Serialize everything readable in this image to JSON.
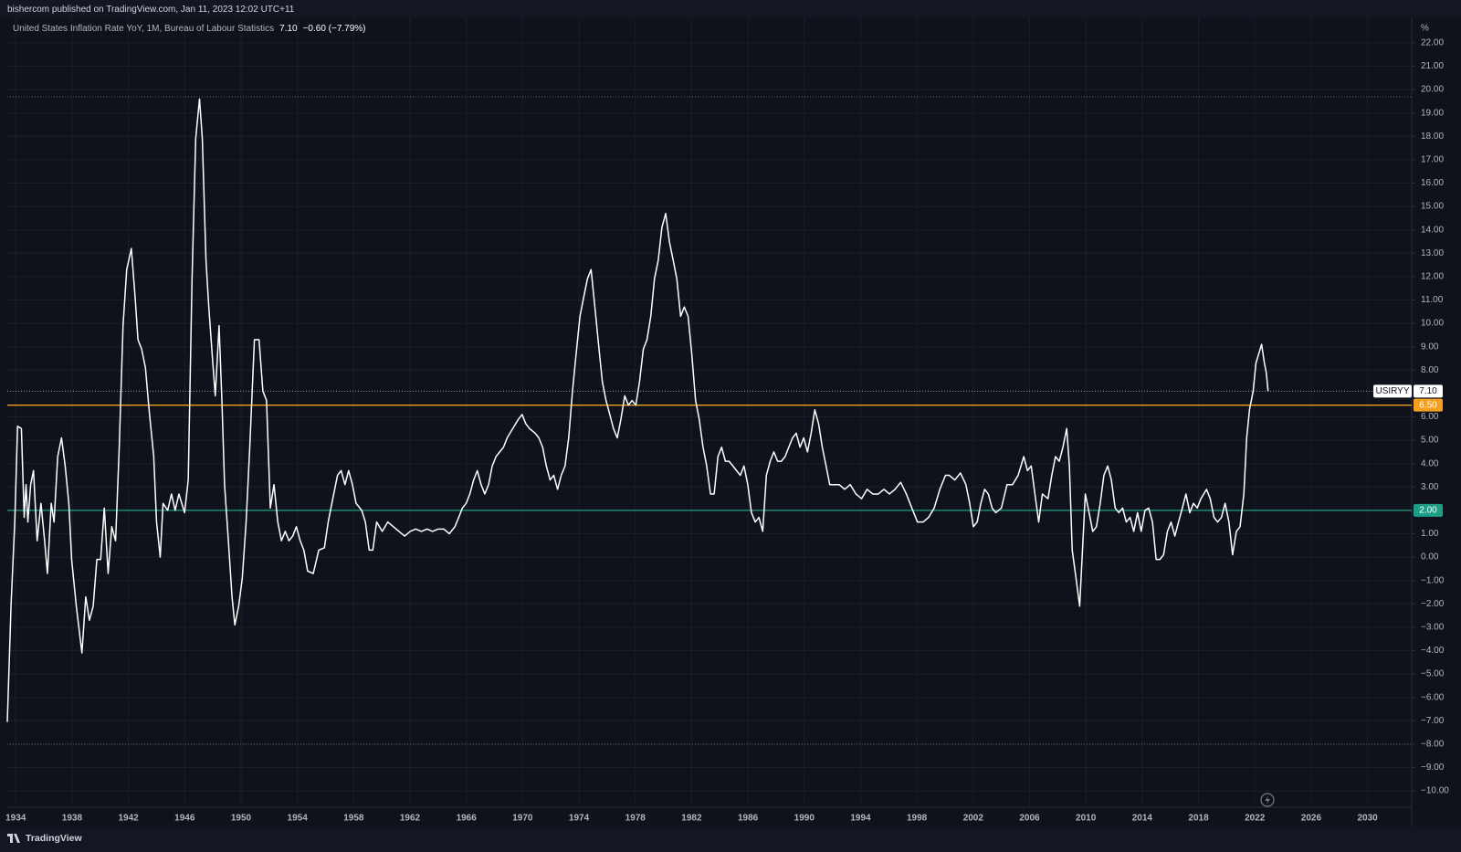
{
  "chart_data": {
    "type": "line",
    "publisher_note": "bishercom published on TradingView.com, Jan 11, 2023 12:02 UTC+11",
    "legend_title": "United States Inflation Rate YoY, 1M, Bureau of Labour Statistics",
    "legend_change": "−0.60 (−7.79%)",
    "unit": "%",
    "footer": "TradingView",
    "grid": true,
    "xlim": [
      1933.4,
      2033.14
    ],
    "ylim": [
      -10.7,
      23.05
    ],
    "xticks": [
      1934,
      1938,
      1942,
      1946,
      1950,
      1954,
      1958,
      1962,
      1966,
      1970,
      1974,
      1978,
      1982,
      1986,
      1990,
      1994,
      1998,
      2002,
      2006,
      2010,
      2014,
      2018,
      2022,
      2026,
      2030
    ],
    "yticks": [
      {
        "value": 22,
        "label": "22.00"
      },
      {
        "value": 21,
        "label": "21.00"
      },
      {
        "value": 20,
        "label": "20.00"
      },
      {
        "value": 19,
        "label": "19.00"
      },
      {
        "value": 18,
        "label": "18.00"
      },
      {
        "value": 17,
        "label": "17.00"
      },
      {
        "value": 16,
        "label": "16.00"
      },
      {
        "value": 15,
        "label": "15.00"
      },
      {
        "value": 14,
        "label": "14.00"
      },
      {
        "value": 13,
        "label": "13.00"
      },
      {
        "value": 12,
        "label": "12.00"
      },
      {
        "value": 11,
        "label": "11.00"
      },
      {
        "value": 10,
        "label": "10.00"
      },
      {
        "value": 9,
        "label": "9.00"
      },
      {
        "value": 8,
        "label": "8.00"
      },
      {
        "value": 6,
        "label": "6.00"
      },
      {
        "value": 5,
        "label": "5.00"
      },
      {
        "value": 4,
        "label": "4.00"
      },
      {
        "value": 3,
        "label": "3.00"
      },
      {
        "value": 1,
        "label": "1.00"
      },
      {
        "value": 0,
        "label": "0.00"
      },
      {
        "value": -1,
        "label": "−1.00"
      },
      {
        "value": -2,
        "label": "−2.00"
      },
      {
        "value": -3,
        "label": "−3.00"
      },
      {
        "value": -4,
        "label": "−4.00"
      },
      {
        "value": -5,
        "label": "−5.00"
      },
      {
        "value": -6,
        "label": "−6.00"
      },
      {
        "value": -7,
        "label": "−7.00"
      },
      {
        "value": -8,
        "label": "−8.00"
      },
      {
        "value": -9,
        "label": "−9.00"
      },
      {
        "value": -10,
        "label": "−10.00"
      }
    ],
    "last_value": {
      "value": 7.1,
      "label": "7.10"
    },
    "hlines": [
      {
        "value": 6.5,
        "label": "6.50",
        "color": "#f59f1f"
      },
      {
        "value": 2,
        "label": "2.00",
        "color": "#1f9e87"
      }
    ],
    "range_lines": [
      19.69,
      -8
    ],
    "x": [
      1933.4,
      1933.67,
      1933.93,
      1934.13,
      1934.4,
      1934.6,
      1934.73,
      1934.86,
      1935.06,
      1935.26,
      1935.52,
      1935.79,
      1936.05,
      1936.25,
      1936.52,
      1936.72,
      1936.98,
      1937.25,
      1937.51,
      1937.77,
      1937.97,
      1938.3,
      1938.7,
      1938.97,
      1939.23,
      1939.5,
      1939.76,
      1940.03,
      1940.29,
      1940.56,
      1940.82,
      1941.09,
      1941.35,
      1941.62,
      1941.88,
      1942.21,
      1942.48,
      1942.68,
      1942.94,
      1943.21,
      1943.47,
      1943.8,
      1944.0,
      1944.26,
      1944.46,
      1944.79,
      1945.06,
      1945.32,
      1945.59,
      1945.99,
      1946.25,
      1946.52,
      1946.78,
      1947.05,
      1947.25,
      1947.51,
      1947.71,
      1947.97,
      1948.17,
      1948.44,
      1948.64,
      1948.83,
      1949.1,
      1949.36,
      1949.56,
      1949.83,
      1950.09,
      1950.36,
      1950.62,
      1950.95,
      1951.28,
      1951.55,
      1951.81,
      1952.08,
      1952.34,
      1952.61,
      1952.87,
      1953.14,
      1953.4,
      1953.67,
      1953.93,
      1954.2,
      1954.46,
      1954.73,
      1955.13,
      1955.52,
      1955.92,
      1956.19,
      1956.45,
      1956.85,
      1957.11,
      1957.38,
      1957.64,
      1957.91,
      1958.17,
      1958.57,
      1958.83,
      1959.1,
      1959.36,
      1959.63,
      1960.03,
      1960.42,
      1960.82,
      1961.22,
      1961.62,
      1962.01,
      1962.41,
      1962.81,
      1963.21,
      1963.6,
      1964.0,
      1964.4,
      1964.79,
      1965.19,
      1965.46,
      1965.72,
      1965.99,
      1966.25,
      1966.52,
      1966.78,
      1967.05,
      1967.31,
      1967.58,
      1967.84,
      1968.11,
      1968.37,
      1968.64,
      1968.9,
      1969.3,
      1969.7,
      1969.96,
      1970.23,
      1970.49,
      1970.89,
      1971.15,
      1971.42,
      1971.68,
      1971.95,
      1972.21,
      1972.48,
      1972.74,
      1973.01,
      1973.27,
      1973.54,
      1973.8,
      1974.07,
      1974.33,
      1974.6,
      1974.86,
      1975.13,
      1975.39,
      1975.66,
      1975.92,
      1976.19,
      1976.45,
      1976.72,
      1976.98,
      1977.25,
      1977.51,
      1977.77,
      1978.04,
      1978.3,
      1978.57,
      1978.83,
      1979.1,
      1979.36,
      1979.63,
      1979.89,
      1980.16,
      1980.42,
      1980.69,
      1980.95,
      1981.22,
      1981.48,
      1981.75,
      1982.01,
      1982.28,
      1982.54,
      1982.81,
      1983.07,
      1983.34,
      1983.6,
      1983.87,
      1984.13,
      1984.4,
      1984.66,
      1984.93,
      1985.19,
      1985.46,
      1985.72,
      1985.99,
      1986.25,
      1986.52,
      1986.78,
      1987.05,
      1987.31,
      1987.58,
      1987.84,
      1988.11,
      1988.37,
      1988.64,
      1988.9,
      1989.17,
      1989.43,
      1989.7,
      1989.96,
      1990.23,
      1990.49,
      1990.75,
      1991.02,
      1991.28,
      1991.55,
      1991.81,
      1992.08,
      1992.48,
      1992.87,
      1993.27,
      1993.67,
      1994.07,
      1994.46,
      1994.86,
      1995.26,
      1995.66,
      1996.05,
      1996.45,
      1996.85,
      1997.25,
      1997.64,
      1998.04,
      1998.44,
      1998.83,
      1999.23,
      1999.63,
      2000.03,
      2000.29,
      2000.69,
      2001.09,
      2001.48,
      2001.75,
      2002.01,
      2002.28,
      2002.54,
      2002.81,
      2003.07,
      2003.34,
      2003.6,
      2004.0,
      2004.4,
      2004.79,
      2005.19,
      2005.59,
      2005.85,
      2006.12,
      2006.38,
      2006.65,
      2006.91,
      2007.31,
      2007.58,
      2007.84,
      2008.11,
      2008.37,
      2008.64,
      2008.83,
      2009.03,
      2009.3,
      2009.56,
      2009.76,
      2009.96,
      2010.23,
      2010.49,
      2010.75,
      2011.02,
      2011.28,
      2011.55,
      2011.81,
      2012.08,
      2012.34,
      2012.61,
      2012.87,
      2013.14,
      2013.4,
      2013.67,
      2013.93,
      2014.2,
      2014.46,
      2014.73,
      2014.99,
      2015.26,
      2015.52,
      2015.79,
      2016.05,
      2016.32,
      2016.58,
      2016.85,
      2017.11,
      2017.38,
      2017.64,
      2017.91,
      2018.17,
      2018.57,
      2018.83,
      2019.1,
      2019.36,
      2019.63,
      2019.89,
      2020.16,
      2020.42,
      2020.69,
      2020.95,
      2021.22,
      2021.42,
      2021.62,
      2021.88,
      2022.08,
      2022.28,
      2022.48,
      2022.68,
      2022.81,
      2022.94
    ],
    "series": [
      {
        "name": "USIRYY",
        "color": "#ffffff",
        "values": [
          -7.05,
          -2,
          1.5,
          5.6,
          5.5,
          1.7,
          3.1,
          1.5,
          3.1,
          3.7,
          0.7,
          2.3,
          0.7,
          -0.7,
          2.3,
          1.5,
          4.3,
          5.1,
          3.9,
          2.3,
          -0.1,
          -2.1,
          -4.1,
          -1.7,
          -2.7,
          -2.1,
          -0.1,
          -0.1,
          2.1,
          -0.7,
          1.3,
          0.7,
          4.7,
          9.9,
          12.3,
          13.2,
          11.1,
          9.3,
          8.9,
          8.1,
          6.3,
          4.3,
          1.5,
          0,
          2.3,
          2,
          2.7,
          2,
          2.7,
          1.9,
          3.3,
          11.9,
          17.9,
          19.6,
          17.9,
          12.7,
          10.7,
          8.5,
          6.9,
          9.9,
          6.7,
          3.1,
          0.7,
          -1.7,
          -2.9,
          -2.1,
          -0.9,
          1.5,
          4.7,
          9.3,
          9.3,
          7.1,
          6.7,
          2.1,
          3.1,
          1.5,
          0.7,
          1.1,
          0.7,
          0.9,
          1.3,
          0.7,
          0.3,
          -0.6,
          -0.7,
          0.3,
          0.4,
          1.5,
          2.3,
          3.5,
          3.7,
          3.1,
          3.7,
          3.1,
          2.3,
          2.0,
          1.5,
          0.3,
          0.3,
          1.5,
          1.1,
          1.5,
          1.3,
          1.1,
          0.9,
          1.1,
          1.2,
          1.1,
          1.2,
          1.1,
          1.2,
          1.2,
          1.0,
          1.3,
          1.7,
          2.1,
          2.3,
          2.7,
          3.3,
          3.7,
          3.1,
          2.7,
          3.1,
          3.9,
          4.3,
          4.5,
          4.7,
          5.1,
          5.5,
          5.9,
          6.1,
          5.7,
          5.5,
          5.3,
          5.1,
          4.7,
          3.9,
          3.3,
          3.5,
          2.9,
          3.5,
          3.9,
          5.1,
          7.1,
          8.7,
          10.3,
          11.1,
          11.9,
          12.3,
          10.7,
          9.1,
          7.5,
          6.7,
          6.1,
          5.5,
          5.1,
          5.9,
          6.9,
          6.5,
          6.7,
          6.5,
          7.5,
          8.9,
          9.3,
          10.3,
          11.9,
          12.7,
          14.1,
          14.7,
          13.5,
          12.7,
          11.9,
          10.3,
          10.7,
          10.3,
          8.7,
          6.7,
          5.9,
          4.7,
          3.9,
          2.7,
          2.7,
          4.3,
          4.7,
          4.1,
          4.1,
          3.9,
          3.7,
          3.5,
          3.9,
          3.1,
          1.9,
          1.5,
          1.7,
          1.1,
          3.5,
          4.1,
          4.5,
          4.1,
          4.1,
          4.3,
          4.7,
          5.1,
          5.3,
          4.7,
          5.1,
          4.5,
          5.3,
          6.3,
          5.7,
          4.7,
          3.9,
          3.1,
          3.1,
          3.1,
          2.9,
          3.1,
          2.7,
          2.5,
          2.9,
          2.7,
          2.7,
          2.9,
          2.7,
          2.9,
          3.2,
          2.7,
          2.1,
          1.5,
          1.5,
          1.7,
          2.1,
          2.9,
          3.5,
          3.5,
          3.3,
          3.6,
          3.1,
          2.3,
          1.3,
          1.5,
          2.3,
          2.9,
          2.7,
          2.1,
          1.9,
          2.1,
          3.1,
          3.1,
          3.5,
          4.3,
          3.7,
          3.9,
          2.7,
          1.5,
          2.7,
          2.5,
          3.5,
          4.3,
          4.1,
          4.7,
          5.5,
          3.9,
          0.3,
          -0.9,
          -2.1,
          0.3,
          2.7,
          1.9,
          1.1,
          1.3,
          2.3,
          3.5,
          3.9,
          3.3,
          2.1,
          1.9,
          2.1,
          1.5,
          1.7,
          1.1,
          1.9,
          1.1,
          2.0,
          2.1,
          1.5,
          -0.1,
          -0.1,
          0.1,
          1.1,
          1.5,
          0.9,
          1.5,
          2.1,
          2.7,
          1.9,
          2.3,
          2.1,
          2.5,
          2.9,
          2.5,
          1.7,
          1.5,
          1.7,
          2.3,
          1.5,
          0.1,
          1.1,
          1.3,
          2.7,
          5.1,
          6.3,
          7.1,
          8.3,
          8.7,
          9.1,
          8.3,
          7.9,
          7.1
        ]
      }
    ]
  }
}
